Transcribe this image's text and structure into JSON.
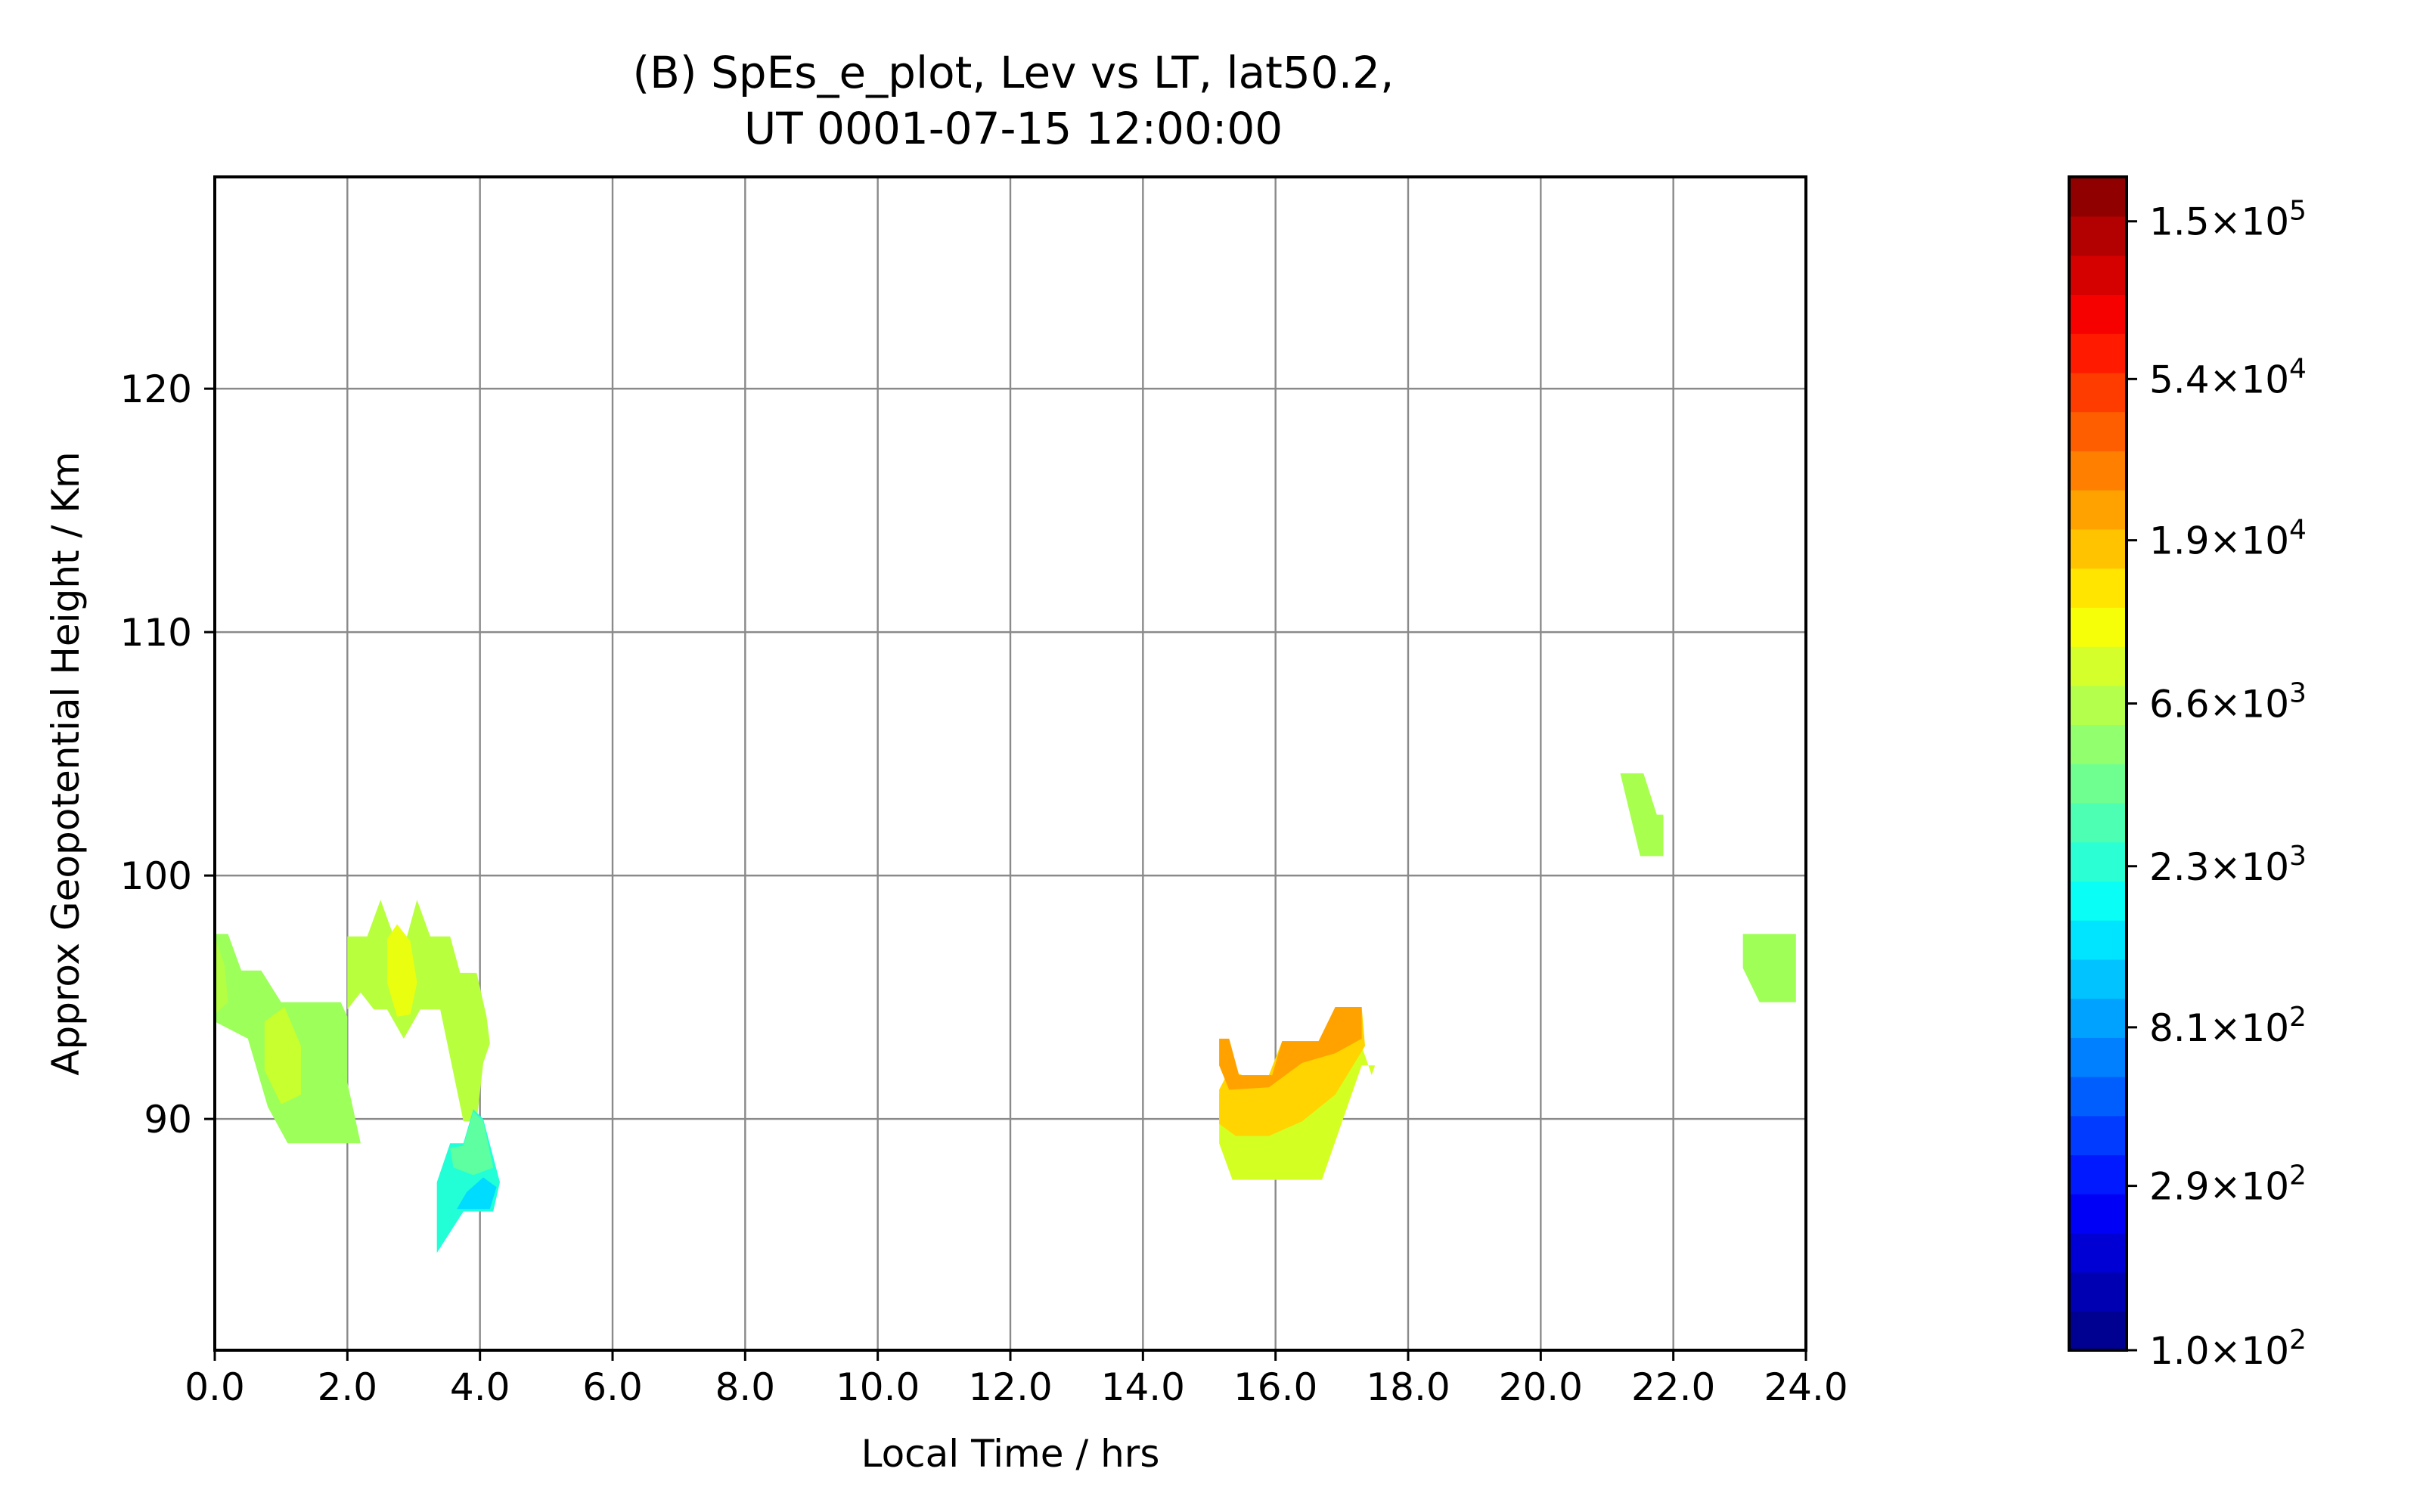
{
  "chart_data": {
    "type": "contour",
    "title_line1": "(B) SpEs_e_plot, Lev vs LT, lat50.2,",
    "title_line2": "UT 0001-07-15 12:00:00",
    "xlabel": "Local Time / hrs",
    "ylabel": "Approx Geopotential Height / Km",
    "xlim": [
      0,
      24
    ],
    "ylim": [
      80.5,
      128.7
    ],
    "x_ticks": [
      0,
      2,
      4,
      6,
      8,
      10,
      12,
      14,
      16,
      18,
      20,
      22,
      24
    ],
    "x_tick_labels": [
      "0.0",
      "2.0",
      "4.0",
      "6.0",
      "8.0",
      "10.0",
      "12.0",
      "14.0",
      "16.0",
      "18.0",
      "20.0",
      "22.0",
      "24.0"
    ],
    "y_ticks": [
      90,
      100,
      110,
      120
    ],
    "y_tick_labels": [
      "90",
      "100",
      "110",
      "120"
    ],
    "grid": true,
    "colormap": "jet",
    "colorbar": {
      "scale": "log",
      "min": 100,
      "max": 200000,
      "levels": 30,
      "tick_values": [
        100,
        290,
        810,
        2300,
        6600,
        19000,
        54000,
        150000
      ],
      "tick_labels": [
        {
          "mantissa": "1.0",
          "exponent": "2"
        },
        {
          "mantissa": "2.9",
          "exponent": "2"
        },
        {
          "mantissa": "8.1",
          "exponent": "2"
        },
        {
          "mantissa": "2.3",
          "exponent": "3"
        },
        {
          "mantissa": "6.6",
          "exponent": "3"
        },
        {
          "mantissa": "1.9",
          "exponent": "4"
        },
        {
          "mantissa": "5.4",
          "exponent": "4"
        },
        {
          "mantissa": "1.5",
          "exponent": "5"
        }
      ]
    },
    "regions": [
      {
        "name": "patch-0-2h-outer",
        "color": "#9cff5a",
        "points": [
          [
            0,
            97.6
          ],
          [
            0.2,
            97.6
          ],
          [
            0.4,
            96.1
          ],
          [
            0.7,
            96.1
          ],
          [
            1.0,
            94.8
          ],
          [
            1.9,
            94.8
          ],
          [
            2.0,
            94.2
          ],
          [
            2.0,
            91.5
          ],
          [
            2.2,
            89.0
          ],
          [
            1.1,
            89.0
          ],
          [
            0.8,
            90.5
          ],
          [
            0.5,
            93.3
          ],
          [
            0,
            94.0
          ]
        ]
      },
      {
        "name": "patch-0-2h-inner",
        "color": "#c8ff2e",
        "points": [
          [
            0.75,
            94.0
          ],
          [
            1.05,
            94.6
          ],
          [
            1.3,
            93.0
          ],
          [
            1.3,
            91.0
          ],
          [
            1.0,
            90.6
          ],
          [
            0.75,
            92.0
          ]
        ]
      },
      {
        "name": "patch-0-2h-left",
        "color": "#b4ff44",
        "points": [
          [
            0,
            97.5
          ],
          [
            0.15,
            96.3
          ],
          [
            0.2,
            94.8
          ],
          [
            0,
            94.3
          ]
        ]
      },
      {
        "name": "patch-2-4h-outer",
        "color": "#b8ff3e",
        "points": [
          [
            2.0,
            94.5
          ],
          [
            2.0,
            97.5
          ],
          [
            2.3,
            97.5
          ],
          [
            2.5,
            99.0
          ],
          [
            2.7,
            97.5
          ],
          [
            2.9,
            97.5
          ],
          [
            3.05,
            99.0
          ],
          [
            3.25,
            97.5
          ],
          [
            3.55,
            97.5
          ],
          [
            3.7,
            96.0
          ],
          [
            3.95,
            96.0
          ],
          [
            4.1,
            94.2
          ],
          [
            4.15,
            93.1
          ],
          [
            4.05,
            92.3
          ],
          [
            3.95,
            89.9
          ],
          [
            3.75,
            89.9
          ],
          [
            3.5,
            93.2
          ],
          [
            3.4,
            94.5
          ],
          [
            3.1,
            94.5
          ],
          [
            2.85,
            93.3
          ],
          [
            2.6,
            94.5
          ],
          [
            2.4,
            94.5
          ],
          [
            2.2,
            95.2
          ]
        ]
      },
      {
        "name": "patch-2-4h-core",
        "color": "#eaff10",
        "points": [
          [
            2.6,
            97.4
          ],
          [
            2.75,
            98.0
          ],
          [
            2.95,
            97.3
          ],
          [
            3.05,
            95.6
          ],
          [
            2.95,
            94.3
          ],
          [
            2.75,
            94.2
          ],
          [
            2.6,
            95.6
          ]
        ]
      },
      {
        "name": "patch-3.5-4.3h-cyan",
        "color": "#22ffd6",
        "points": [
          [
            3.35,
            87.4
          ],
          [
            3.55,
            89.0
          ],
          [
            3.75,
            89.0
          ],
          [
            3.9,
            90.4
          ],
          [
            4.05,
            90.0
          ],
          [
            4.3,
            87.4
          ],
          [
            4.2,
            86.2
          ],
          [
            3.75,
            86.2
          ],
          [
            3.35,
            84.5
          ]
        ]
      },
      {
        "name": "patch-3.5-4.3h-blue",
        "color": "#00dcff",
        "points": [
          [
            3.65,
            86.3
          ],
          [
            4.15,
            86.3
          ],
          [
            4.25,
            87.2
          ],
          [
            4.05,
            87.6
          ],
          [
            3.8,
            87.0
          ]
        ]
      },
      {
        "name": "patch-3.5-4.3h-green",
        "color": "#5effa0",
        "points": [
          [
            3.55,
            88.8
          ],
          [
            3.75,
            88.9
          ],
          [
            3.9,
            90.3
          ],
          [
            4.05,
            89.9
          ],
          [
            4.2,
            88.0
          ],
          [
            3.9,
            87.7
          ],
          [
            3.6,
            88.0
          ]
        ]
      },
      {
        "name": "patch-15-17h-yellow",
        "color": "#d4ff22",
        "points": [
          [
            15.15,
            89.0
          ],
          [
            15.35,
            87.5
          ],
          [
            16.7,
            87.5
          ],
          [
            17.3,
            92.2
          ],
          [
            17.5,
            92.2
          ],
          [
            17.45,
            91.8
          ],
          [
            17.3,
            93.0
          ],
          [
            17.0,
            93.2
          ],
          [
            16.65,
            93.2
          ],
          [
            16.15,
            91.8
          ],
          [
            15.3,
            91.8
          ],
          [
            15.15,
            91.0
          ]
        ]
      },
      {
        "name": "patch-15-17h-orange-band",
        "color": "#ffd400",
        "points": [
          [
            15.15,
            91.2
          ],
          [
            15.3,
            92.0
          ],
          [
            15.5,
            91.8
          ],
          [
            15.9,
            91.8
          ],
          [
            16.1,
            93.2
          ],
          [
            16.65,
            93.2
          ],
          [
            16.95,
            94.6
          ],
          [
            17.3,
            94.6
          ],
          [
            17.35,
            93.0
          ],
          [
            16.9,
            91.0
          ],
          [
            16.4,
            89.9
          ],
          [
            15.9,
            89.3
          ],
          [
            15.4,
            89.3
          ],
          [
            15.15,
            89.8
          ]
        ]
      },
      {
        "name": "patch-15-17h-orange-core",
        "color": "#ffa200",
        "points": [
          [
            15.15,
            93.3
          ],
          [
            15.3,
            93.3
          ],
          [
            15.45,
            91.8
          ],
          [
            15.95,
            91.8
          ],
          [
            16.1,
            93.2
          ],
          [
            16.65,
            93.2
          ],
          [
            16.9,
            94.6
          ],
          [
            17.3,
            94.6
          ],
          [
            17.3,
            93.3
          ],
          [
            16.9,
            92.7
          ],
          [
            16.4,
            92.3
          ],
          [
            15.9,
            91.3
          ],
          [
            15.3,
            91.2
          ],
          [
            15.15,
            92.2
          ]
        ]
      },
      {
        "name": "patch-21-22h",
        "color": "#a8ff4e",
        "points": [
          [
            21.2,
            104.2
          ],
          [
            21.55,
            104.2
          ],
          [
            21.75,
            102.5
          ],
          [
            21.85,
            102.5
          ],
          [
            21.85,
            100.8
          ],
          [
            21.5,
            100.8
          ]
        ]
      },
      {
        "name": "patch-23-24h",
        "color": "#a0ff56",
        "points": [
          [
            23.05,
            97.6
          ],
          [
            23.85,
            97.6
          ],
          [
            23.85,
            94.8
          ],
          [
            23.3,
            94.8
          ],
          [
            23.05,
            96.2
          ]
        ]
      }
    ]
  }
}
